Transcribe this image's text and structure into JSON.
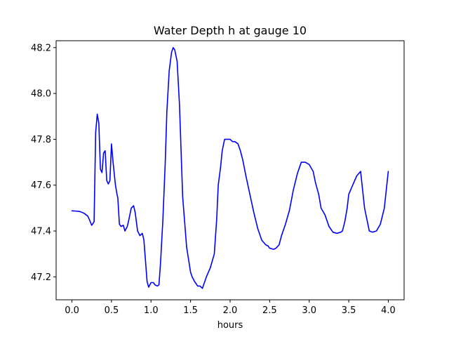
{
  "chart_data": {
    "type": "line",
    "title": "Water Depth h at gauge 10",
    "xlabel": "hours",
    "ylabel": "",
    "xlim": [
      -0.2,
      4.2
    ],
    "ylim": [
      47.1,
      48.23
    ],
    "grid": false,
    "x_ticks": [
      0.0,
      0.5,
      1.0,
      1.5,
      2.0,
      2.5,
      3.0,
      3.5,
      4.0
    ],
    "x_tick_labels": [
      "0.0",
      "0.5",
      "1.0",
      "1.5",
      "2.0",
      "2.5",
      "3.0",
      "3.5",
      "4.0"
    ],
    "y_ticks": [
      47.2,
      47.4,
      47.6,
      47.8,
      48.0,
      48.2
    ],
    "y_tick_labels": [
      "47.2",
      "47.4",
      "47.6",
      "47.8",
      "48.0",
      "48.2"
    ],
    "series": [
      {
        "color": "#0000ff",
        "x": [
          0.0,
          0.05,
          0.1,
          0.15,
          0.2,
          0.22,
          0.25,
          0.28,
          0.3,
          0.32,
          0.34,
          0.36,
          0.38,
          0.4,
          0.42,
          0.44,
          0.46,
          0.48,
          0.5,
          0.52,
          0.55,
          0.57,
          0.58,
          0.6,
          0.62,
          0.65,
          0.67,
          0.7,
          0.72,
          0.75,
          0.78,
          0.8,
          0.83,
          0.86,
          0.89,
          0.91,
          0.93,
          0.95,
          0.97,
          1.0,
          1.03,
          1.05,
          1.08,
          1.1,
          1.12,
          1.15,
          1.18,
          1.2,
          1.23,
          1.26,
          1.28,
          1.3,
          1.33,
          1.36,
          1.4,
          1.45,
          1.5,
          1.52,
          1.55,
          1.57,
          1.59,
          1.62,
          1.65,
          1.7,
          1.75,
          1.8,
          1.83,
          1.85,
          1.88,
          1.9,
          1.93,
          1.96,
          2.0,
          2.03,
          2.06,
          2.1,
          2.13,
          2.16,
          2.2,
          2.25,
          2.3,
          2.35,
          2.4,
          2.45,
          2.48,
          2.5,
          2.55,
          2.58,
          2.62,
          2.65,
          2.7,
          2.75,
          2.8,
          2.85,
          2.9,
          2.95,
          3.0,
          3.05,
          3.08,
          3.12,
          3.15,
          3.2,
          3.25,
          3.3,
          3.35,
          3.4,
          3.42,
          3.45,
          3.48,
          3.5,
          3.55,
          3.6,
          3.65,
          3.7,
          3.73,
          3.76,
          3.8,
          3.85,
          3.9,
          3.95,
          4.0
        ],
        "y": [
          47.488,
          47.487,
          47.485,
          47.478,
          47.465,
          47.45,
          47.425,
          47.44,
          47.83,
          47.91,
          47.87,
          47.67,
          47.655,
          47.74,
          47.75,
          47.62,
          47.605,
          47.62,
          47.78,
          47.7,
          47.6,
          47.56,
          47.545,
          47.43,
          47.42,
          47.425,
          47.4,
          47.42,
          47.45,
          47.5,
          47.51,
          47.48,
          47.4,
          47.38,
          47.39,
          47.36,
          47.27,
          47.18,
          47.155,
          47.175,
          47.175,
          47.165,
          47.16,
          47.165,
          47.26,
          47.45,
          47.7,
          47.92,
          48.1,
          48.18,
          48.2,
          48.19,
          48.14,
          47.95,
          47.55,
          47.33,
          47.22,
          47.2,
          47.18,
          47.17,
          47.16,
          47.16,
          47.15,
          47.2,
          47.24,
          47.3,
          47.45,
          47.6,
          47.68,
          47.75,
          47.8,
          47.8,
          47.8,
          47.79,
          47.79,
          47.78,
          47.75,
          47.71,
          47.64,
          47.56,
          47.48,
          47.41,
          47.36,
          47.34,
          47.335,
          47.325,
          47.32,
          47.325,
          47.34,
          47.38,
          47.43,
          47.49,
          47.58,
          47.65,
          47.7,
          47.7,
          47.69,
          47.66,
          47.61,
          47.56,
          47.5,
          47.47,
          47.42,
          47.395,
          47.39,
          47.395,
          47.4,
          47.44,
          47.5,
          47.56,
          47.6,
          47.64,
          47.66,
          47.5,
          47.45,
          47.4,
          47.395,
          47.4,
          47.43,
          47.5,
          47.66
        ]
      }
    ]
  }
}
